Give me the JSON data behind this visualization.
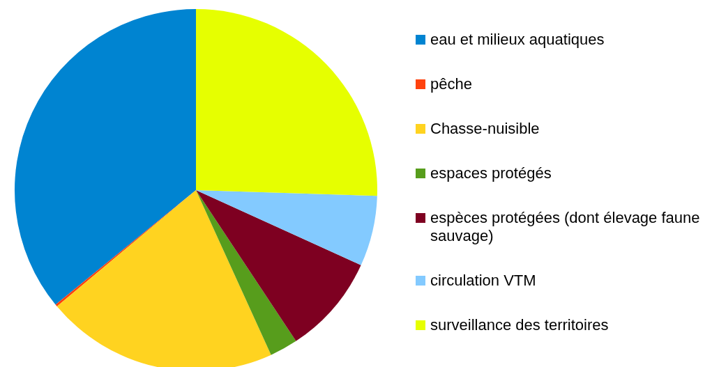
{
  "chart_data": {
    "type": "pie",
    "categories": [
      "eau et milieux aquatiques",
      "pêche",
      "Chasse-nuisible",
      "espaces protégés",
      "espèces protégées (dont élevage faune sauvage)",
      "circulation VTM",
      "surveillance des territoires"
    ],
    "values": [
      35.9,
      0.2,
      20.7,
      2.5,
      8.9,
      6.3,
      25.5
    ],
    "colors": [
      "#0084d1",
      "#ff420e",
      "#ffd320",
      "#579d1c",
      "#7e0021",
      "#83caff",
      "#e6ff00"
    ],
    "legend": "right"
  }
}
